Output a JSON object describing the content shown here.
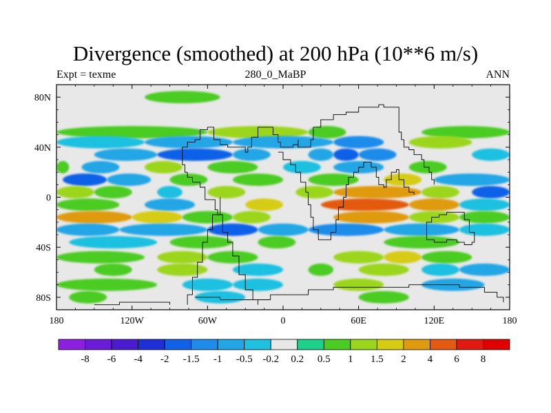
{
  "chart_data": {
    "type": "heatmap",
    "title": "Divergence (smoothed) at 200 hPa (10**6 m/s)",
    "subtitle_left": "Expt = texme",
    "subtitle_center": "280_0_MaBP",
    "subtitle_right": "ANN",
    "x_ticks": [
      {
        "value": -180,
        "label": "180"
      },
      {
        "value": -120,
        "label": "120W"
      },
      {
        "value": -60,
        "label": "60W"
      },
      {
        "value": 0,
        "label": "0"
      },
      {
        "value": 60,
        "label": "60E"
      },
      {
        "value": 120,
        "label": "120E"
      },
      {
        "value": 180,
        "label": "180"
      }
    ],
    "y_ticks": [
      {
        "value": 80,
        "label": "80N"
      },
      {
        "value": 40,
        "label": "40N"
      },
      {
        "value": 0,
        "label": "0"
      },
      {
        "value": -40,
        "label": "40S"
      },
      {
        "value": -80,
        "label": "80S"
      }
    ],
    "xlim": [
      -180,
      180
    ],
    "ylim": [
      -90,
      90
    ],
    "colorbar": {
      "labels": [
        "-8",
        "-6",
        "-4",
        "-2",
        "-1.5",
        "-1",
        "-0.5",
        "-0.2",
        "0.2",
        "0.5",
        "1",
        "1.5",
        "2",
        "4",
        "6",
        "8"
      ],
      "colors": [
        "#8C1FE0",
        "#6C1CD8",
        "#4A1BD0",
        "#1F2FD8",
        "#1060E8",
        "#1F8CEA",
        "#22A6E6",
        "#1FC0E0",
        "#E8E8E8",
        "#1FD08C",
        "#4CCC22",
        "#9CD61C",
        "#D6CC14",
        "#E09A0F",
        "#E45A10",
        "#E01A10",
        "#E00000"
      ]
    },
    "bands": [
      {
        "lat": 80,
        "segs": [
          [
            -110,
            -50,
            0.5
          ]
        ]
      },
      {
        "lat": 52,
        "segs": [
          [
            -180,
            -60,
            0.5
          ],
          [
            -60,
            20,
            1
          ],
          [
            20,
            50,
            0.5
          ],
          [
            110,
            180,
            0.5
          ]
        ]
      },
      {
        "lat": 44,
        "segs": [
          [
            -180,
            -110,
            -0.5
          ],
          [
            -110,
            -40,
            -1
          ],
          [
            -40,
            40,
            -1
          ],
          [
            40,
            80,
            -1.5
          ],
          [
            100,
            150,
            1
          ]
        ]
      },
      {
        "lat": 34,
        "segs": [
          [
            -150,
            -100,
            -1
          ],
          [
            -100,
            -40,
            -2
          ],
          [
            -40,
            -10,
            -1
          ],
          [
            20,
            40,
            -1
          ],
          [
            40,
            60,
            -2
          ],
          [
            60,
            90,
            -1.5
          ],
          [
            150,
            180,
            -0.5
          ]
        ]
      },
      {
        "lat": 24,
        "segs": [
          [
            -180,
            -170,
            0.5
          ],
          [
            -160,
            -130,
            -1
          ],
          [
            -110,
            -80,
            1
          ],
          [
            -60,
            -20,
            0.5
          ],
          [
            0,
            30,
            -0.5
          ],
          [
            40,
            80,
            -1
          ],
          [
            100,
            130,
            0.5
          ]
        ]
      },
      {
        "lat": 14,
        "segs": [
          [
            -175,
            -140,
            -2
          ],
          [
            -140,
            -105,
            -1
          ],
          [
            -90,
            -60,
            0.5
          ],
          [
            -40,
            0,
            0.5
          ],
          [
            20,
            60,
            0.5
          ],
          [
            80,
            110,
            1.5
          ],
          [
            120,
            180,
            -1
          ]
        ]
      },
      {
        "lat": 4,
        "segs": [
          [
            -180,
            -150,
            1
          ],
          [
            -150,
            -120,
            0.5
          ],
          [
            -100,
            -80,
            -0.5
          ],
          [
            -60,
            -30,
            1
          ],
          [
            10,
            40,
            1
          ],
          [
            40,
            110,
            2
          ],
          [
            110,
            140,
            1
          ],
          [
            150,
            180,
            -2
          ]
        ]
      },
      {
        "lat": -6,
        "segs": [
          [
            -180,
            -130,
            0.5
          ],
          [
            -110,
            -70,
            -1
          ],
          [
            -30,
            0,
            1.5
          ],
          [
            30,
            100,
            4
          ],
          [
            100,
            140,
            2
          ],
          [
            140,
            180,
            -0.5
          ]
        ]
      },
      {
        "lat": -16,
        "segs": [
          [
            -180,
            -120,
            2
          ],
          [
            -120,
            -80,
            1.5
          ],
          [
            -80,
            -40,
            0.5
          ],
          [
            -40,
            -10,
            1
          ],
          [
            40,
            100,
            2
          ],
          [
            100,
            140,
            1
          ],
          [
            140,
            180,
            0.5
          ]
        ]
      },
      {
        "lat": -26,
        "segs": [
          [
            -180,
            -130,
            -1
          ],
          [
            -130,
            -60,
            -1
          ],
          [
            -60,
            -20,
            -2
          ],
          [
            -20,
            20,
            -1
          ],
          [
            20,
            80,
            -1.5
          ],
          [
            80,
            140,
            -1
          ],
          [
            140,
            180,
            -0.5
          ]
        ]
      },
      {
        "lat": -36,
        "segs": [
          [
            -170,
            -100,
            -0.5
          ],
          [
            -90,
            -40,
            0.5
          ],
          [
            -20,
            10,
            0.5
          ],
          [
            80,
            140,
            0.5
          ]
        ]
      },
      {
        "lat": -48,
        "segs": [
          [
            -180,
            -110,
            0.5
          ],
          [
            -100,
            -60,
            1
          ],
          [
            -60,
            -20,
            0.5
          ],
          [
            40,
            80,
            1
          ],
          [
            80,
            110,
            1.5
          ],
          [
            110,
            150,
            0.5
          ]
        ]
      },
      {
        "lat": -58,
        "segs": [
          [
            -150,
            -120,
            0.5
          ],
          [
            -100,
            -60,
            1
          ],
          [
            -40,
            0,
            -0.5
          ],
          [
            20,
            40,
            0.5
          ],
          [
            60,
            100,
            1
          ],
          [
            110,
            140,
            -0.5
          ],
          [
            140,
            180,
            -1
          ]
        ]
      },
      {
        "lat": -70,
        "segs": [
          [
            -180,
            -100,
            0.5
          ],
          [
            -80,
            -40,
            -0.5
          ],
          [
            -40,
            0,
            -0.5
          ],
          [
            40,
            80,
            1
          ],
          [
            110,
            160,
            -1
          ]
        ]
      },
      {
        "lat": -80,
        "segs": [
          [
            -170,
            -140,
            0.5
          ],
          [
            -70,
            -30,
            -0.5
          ],
          [
            60,
            100,
            0.5
          ]
        ]
      }
    ],
    "coastline": [
      [
        [
          -20,
          -86
        ],
        [
          -20,
          -82
        ],
        [
          -24,
          -82
        ],
        [
          -24,
          -74
        ],
        [
          -30,
          -70
        ],
        [
          -30,
          -62
        ],
        [
          -35,
          -56
        ],
        [
          -35,
          -47
        ],
        [
          -40,
          -42
        ],
        [
          -40,
          -36
        ],
        [
          -44,
          -32
        ],
        [
          -44,
          -28
        ],
        [
          -48,
          -24
        ],
        [
          -48,
          -14
        ],
        [
          -52,
          -10
        ],
        [
          -54,
          -2
        ],
        [
          -58,
          -2
        ],
        [
          -62,
          2
        ],
        [
          -62,
          8
        ],
        [
          -66,
          12
        ],
        [
          -70,
          12
        ],
        [
          -72,
          16
        ],
        [
          -76,
          20
        ]
      ],
      [
        [
          -76,
          -86
        ],
        [
          -76,
          -78
        ],
        [
          -72,
          -74
        ],
        [
          -72,
          -64
        ],
        [
          -68,
          -60
        ],
        [
          -68,
          -52
        ],
        [
          -64,
          -48
        ],
        [
          -64,
          -36
        ],
        [
          -60,
          -32
        ],
        [
          -60,
          -26
        ],
        [
          -56,
          -22
        ],
        [
          -56,
          -14
        ],
        [
          -50,
          -8
        ],
        [
          -50,
          0
        ]
      ],
      [
        [
          -76,
          20
        ],
        [
          -78,
          26
        ],
        [
          -80,
          28
        ],
        [
          -80,
          40
        ],
        [
          -76,
          44
        ],
        [
          -70,
          46
        ],
        [
          -66,
          54
        ],
        [
          -60,
          56
        ],
        [
          -55,
          52
        ],
        [
          -55,
          46
        ],
        [
          -50,
          42
        ],
        [
          -44,
          40
        ],
        [
          -30,
          36
        ],
        [
          -28,
          40
        ],
        [
          -25,
          48
        ],
        [
          -20,
          56
        ],
        [
          -10,
          56
        ],
        [
          -8,
          50
        ],
        [
          -4,
          44
        ],
        [
          -2,
          40
        ],
        [
          4,
          40
        ],
        [
          8,
          42
        ],
        [
          12,
          46
        ],
        [
          12,
          40
        ],
        [
          20,
          40
        ],
        [
          22,
          46
        ],
        [
          24,
          56
        ],
        [
          30,
          62
        ],
        [
          40,
          66
        ],
        [
          50,
          68
        ],
        [
          60,
          72
        ],
        [
          70,
          72
        ],
        [
          76,
          74
        ],
        [
          80,
          72
        ],
        [
          90,
          72
        ],
        [
          92,
          66
        ],
        [
          92,
          52
        ],
        [
          94,
          46
        ],
        [
          96,
          40
        ],
        [
          100,
          38
        ],
        [
          104,
          34
        ],
        [
          110,
          30
        ],
        [
          112,
          24
        ],
        [
          116,
          20
        ],
        [
          118,
          14
        ],
        [
          120,
          10
        ]
      ],
      [
        [
          -4,
          36
        ],
        [
          0,
          30
        ],
        [
          6,
          26
        ],
        [
          10,
          20
        ],
        [
          14,
          12
        ],
        [
          18,
          4
        ],
        [
          20,
          -6
        ],
        [
          22,
          -16
        ],
        [
          24,
          -26
        ],
        [
          28,
          -34
        ],
        [
          34,
          -34
        ],
        [
          38,
          -28
        ],
        [
          42,
          -18
        ],
        [
          44,
          -8
        ],
        [
          48,
          0
        ],
        [
          50,
          10
        ],
        [
          52,
          16
        ],
        [
          56,
          20
        ],
        [
          60,
          24
        ],
        [
          64,
          28
        ],
        [
          70,
          24
        ]
      ],
      [
        [
          70,
          24
        ],
        [
          74,
          16
        ],
        [
          76,
          10
        ],
        [
          80,
          8
        ],
        [
          82,
          14
        ],
        [
          86,
          20
        ],
        [
          90,
          22
        ],
        [
          92,
          14
        ],
        [
          96,
          8
        ],
        [
          100,
          4
        ],
        [
          104,
          2
        ]
      ],
      [
        [
          114,
          -22
        ],
        [
          114,
          -34
        ],
        [
          120,
          -36
        ],
        [
          130,
          -34
        ],
        [
          138,
          -36
        ],
        [
          144,
          -38
        ],
        [
          150,
          -36
        ],
        [
          152,
          -28
        ],
        [
          148,
          -18
        ],
        [
          144,
          -12
        ],
        [
          136,
          -12
        ],
        [
          130,
          -14
        ],
        [
          124,
          -16
        ],
        [
          118,
          -20
        ],
        [
          114,
          -22
        ]
      ],
      [
        [
          -70,
          -80
        ],
        [
          -60,
          -80
        ],
        [
          -50,
          -82
        ],
        [
          -30,
          -82
        ],
        [
          -10,
          -78
        ],
        [
          20,
          -74
        ],
        [
          40,
          -72
        ],
        [
          60,
          -72
        ],
        [
          80,
          -72
        ],
        [
          100,
          -70
        ],
        [
          120,
          -70
        ],
        [
          140,
          -72
        ],
        [
          160,
          -76
        ],
        [
          170,
          -80
        ],
        [
          175,
          -84
        ]
      ],
      [
        [
          -150,
          -86
        ],
        [
          -130,
          -84
        ],
        [
          -110,
          -84
        ],
        [
          -90,
          -86
        ]
      ]
    ]
  }
}
